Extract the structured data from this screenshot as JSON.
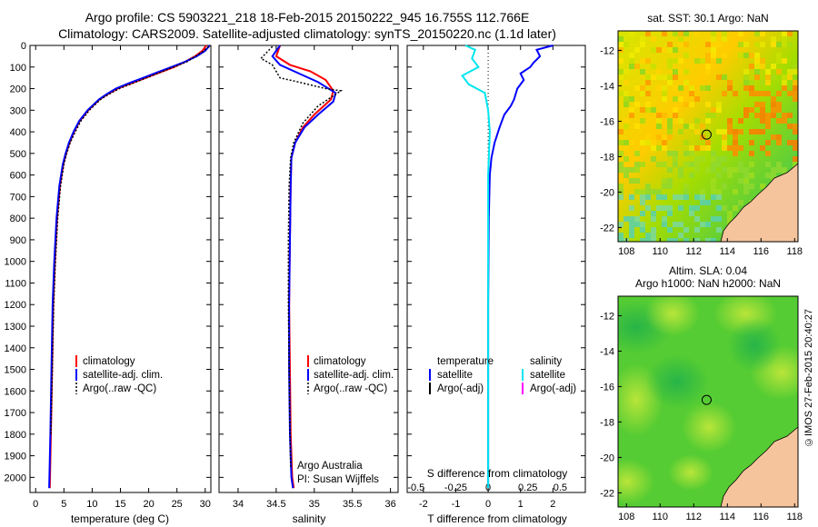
{
  "header": {
    "line1": "Argo profile: CS 5903221_218 18-Feb-2015 20150222_945 16.755S 112.766E",
    "line2": "Climatology: CARS2009. Satellite-adjusted climatology: synTS_20150220.nc (1.1d later)"
  },
  "credit": "©IMOS 27-Feb-2015 20:40:27",
  "colors": {
    "climatology": "#ff0000",
    "satellite": "#0000ff",
    "argo": "#000000",
    "sat_salinity": "#00e5ee",
    "argo_adj_salinity": "#ff00ff",
    "land": "#f6c49c"
  },
  "chart_data": [
    {
      "type": "line",
      "name": "temperature_profile",
      "xlabel": "temperature (deg C)",
      "xlim": [
        -1,
        31
      ],
      "ylim": [
        2070,
        0
      ],
      "xticks": [
        0,
        5,
        10,
        15,
        20,
        25,
        30
      ],
      "yticks": [
        0,
        100,
        200,
        300,
        400,
        500,
        600,
        700,
        800,
        900,
        1000,
        1100,
        1200,
        1300,
        1400,
        1500,
        1600,
        1700,
        1800,
        1900,
        2000
      ],
      "legend": [
        "climatology",
        "satellite-adj. clim.",
        "Argo(..raw -QC)"
      ],
      "series": [
        {
          "name": "climatology",
          "color": "#ff0000",
          "x": [
            30.2,
            29.5,
            28.2,
            26.5,
            24.5,
            22.0,
            19.5,
            17.0,
            14.5,
            12.8,
            11.3,
            9.3,
            7.8,
            6.8,
            6.0,
            5.4,
            4.9,
            4.3,
            3.8,
            3.4,
            3.1,
            2.9,
            2.7,
            2.5
          ],
          "y": [
            0,
            25,
            50,
            75,
            100,
            125,
            150,
            175,
            200,
            225,
            250,
            300,
            350,
            400,
            450,
            500,
            550,
            650,
            800,
            1000,
            1200,
            1500,
            1800,
            2050
          ]
        },
        {
          "name": "satellite-adj. clim.",
          "color": "#0000ff",
          "x": [
            30.8,
            30.0,
            28.5,
            26.5,
            24.0,
            21.5,
            19.0,
            16.5,
            14.2,
            12.6,
            11.2,
            9.2,
            7.7,
            6.7,
            5.9,
            5.3,
            4.8,
            4.2,
            3.7,
            3.3,
            3.0,
            2.8,
            2.6,
            2.4
          ],
          "y": [
            0,
            25,
            50,
            75,
            100,
            125,
            150,
            175,
            200,
            225,
            250,
            300,
            350,
            400,
            450,
            500,
            550,
            650,
            800,
            1000,
            1200,
            1500,
            1800,
            2050
          ]
        },
        {
          "name": "Argo(..raw -QC)",
          "color": "#000000",
          "x": [
            30.6,
            29.8,
            28.3,
            26.8,
            24.4,
            22.0,
            19.6,
            17.2,
            14.8,
            13.0,
            11.5,
            9.5,
            8.0,
            7.0,
            6.1,
            5.5,
            5.0,
            4.4,
            3.9,
            3.5,
            3.2,
            2.95,
            2.7
          ],
          "y": [
            5,
            25,
            50,
            75,
            100,
            125,
            150,
            175,
            200,
            225,
            250,
            300,
            350,
            400,
            450,
            500,
            550,
            650,
            800,
            1000,
            1200,
            1500,
            1800
          ]
        }
      ]
    },
    {
      "type": "line",
      "name": "salinity_profile",
      "xlabel": "salinity",
      "xlim": [
        33.75,
        36.1
      ],
      "ylim": [
        2070,
        0
      ],
      "xticks": [
        34,
        34.5,
        35,
        35.5,
        36
      ],
      "legend": [
        "climatology",
        "satellite-adj. clim.",
        "Argo(..raw -QC)"
      ],
      "annotation": [
        "Argo Australia",
        "PI: Susan Wijffels"
      ],
      "series": [
        {
          "name": "climatology",
          "color": "#ff0000",
          "x": [
            34.55,
            34.5,
            34.68,
            34.95,
            35.15,
            35.25,
            35.22,
            35.0,
            34.85,
            34.75,
            34.7,
            34.69,
            34.68,
            34.67,
            34.68,
            34.69,
            34.71,
            34.73
          ],
          "y": [
            0,
            50,
            90,
            120,
            160,
            210,
            250,
            320,
            380,
            450,
            520,
            650,
            900,
            1200,
            1500,
            1800,
            2000,
            2050
          ]
        },
        {
          "name": "satellite-adj. clim.",
          "color": "#0000ff",
          "x": [
            34.55,
            34.45,
            34.55,
            34.8,
            35.05,
            35.28,
            35.25,
            35.05,
            34.87,
            34.75,
            34.7,
            34.69,
            34.68,
            34.67,
            34.67,
            34.68,
            34.7,
            34.72
          ],
          "y": [
            0,
            50,
            90,
            130,
            170,
            220,
            260,
            320,
            380,
            450,
            520,
            650,
            900,
            1200,
            1500,
            1800,
            2000,
            2050
          ]
        },
        {
          "name": "Argo(..raw -QC)",
          "color": "#000000",
          "x": [
            34.45,
            34.3,
            34.45,
            34.55,
            34.8,
            35.15,
            35.35,
            35.05,
            34.85,
            34.73,
            34.69,
            34.67,
            34.66,
            34.66,
            34.67,
            34.68,
            34.69
          ],
          "y": [
            5,
            60,
            90,
            150,
            170,
            200,
            210,
            280,
            360,
            450,
            520,
            650,
            900,
            1200,
            1500,
            1800,
            1950
          ]
        }
      ]
    },
    {
      "type": "line",
      "name": "difference_profile",
      "xlabel": "T difference from climatology",
      "xlabel2": "S difference from climatology",
      "xlim": [
        -2.5,
        3.0
      ],
      "ylim": [
        2070,
        0
      ],
      "xticks": [
        -2,
        -1,
        0,
        1,
        2
      ],
      "xticks2": [
        "-0.5",
        "-0.25",
        "0",
        "0.25",
        "0.5"
      ],
      "legend_temperature": [
        "temperature",
        "satellite",
        "Argo(-adj)"
      ],
      "legend_salinity": [
        "salinity",
        "satellite",
        "Argo(-adj)"
      ],
      "series": [
        {
          "name": "temperature satellite",
          "color": "#0000ff",
          "x": [
            2.0,
            1.5,
            1.6,
            1.4,
            1.3,
            1.0,
            1.1,
            0.9,
            0.8,
            0.7,
            0.5,
            0.35,
            0.2,
            0.1,
            0.05,
            0.02,
            0.0,
            0.0
          ],
          "y": [
            0,
            20,
            50,
            80,
            100,
            130,
            160,
            200,
            250,
            280,
            320,
            380,
            450,
            520,
            600,
            800,
            1200,
            2050
          ]
        },
        {
          "name": "salinity satellite",
          "color": "#00e5ee",
          "x": [
            -0.7,
            -0.4,
            -0.5,
            -0.3,
            -0.8,
            -0.6,
            -0.1,
            0.0,
            0.05,
            0.0,
            0.0,
            0.0
          ],
          "y": [
            0,
            20,
            60,
            100,
            140,
            180,
            220,
            300,
            400,
            600,
            1200,
            2050
          ]
        }
      ]
    },
    {
      "type": "heatmap",
      "name": "sst_map",
      "title": "sat. SST: 30.1  Argo: NaN",
      "xlim": [
        107.5,
        118.2
      ],
      "ylim": [
        -22.8,
        -10.9
      ],
      "xticks": [
        108,
        110,
        112,
        114,
        116,
        118
      ],
      "yticks": [
        -12,
        -14,
        -16,
        -18,
        -20,
        -22
      ],
      "marker": {
        "lon": 112.766,
        "lat": -16.755
      }
    },
    {
      "type": "heatmap",
      "name": "sla_map",
      "title": "Altim. SLA: 0.04",
      "subtitle": "Argo h1000: NaN h2000: NaN",
      "xlim": [
        107.5,
        118.2
      ],
      "ylim": [
        -22.8,
        -10.9
      ],
      "xticks": [
        108,
        110,
        112,
        114,
        116,
        118
      ],
      "yticks": [
        -12,
        -14,
        -16,
        -18,
        -20,
        -22
      ],
      "marker": {
        "lon": 112.766,
        "lat": -16.755
      }
    }
  ]
}
